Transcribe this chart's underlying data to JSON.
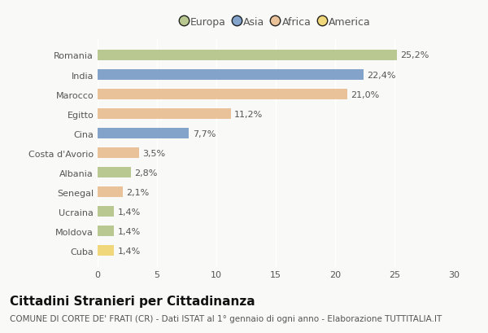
{
  "categories": [
    "Romania",
    "India",
    "Marocco",
    "Egitto",
    "Cina",
    "Costa d'Avorio",
    "Albania",
    "Senegal",
    "Ucraina",
    "Moldova",
    "Cuba"
  ],
  "values": [
    25.2,
    22.4,
    21.0,
    11.2,
    7.7,
    3.5,
    2.8,
    2.1,
    1.4,
    1.4,
    1.4
  ],
  "labels": [
    "25,2%",
    "22,4%",
    "21,0%",
    "11,2%",
    "7,7%",
    "3,5%",
    "2,8%",
    "2,1%",
    "1,4%",
    "1,4%",
    "1,4%"
  ],
  "continents": [
    "Europa",
    "Asia",
    "Africa",
    "Africa",
    "Asia",
    "Africa",
    "Europa",
    "Africa",
    "Europa",
    "Europa",
    "America"
  ],
  "colors": {
    "Europa": "#aec07e",
    "Asia": "#7094c4",
    "Africa": "#e8b98a",
    "America": "#f0d265"
  },
  "legend_order": [
    "Europa",
    "Asia",
    "Africa",
    "America"
  ],
  "xlim": [
    0,
    30
  ],
  "xticks": [
    0,
    5,
    10,
    15,
    20,
    25,
    30
  ],
  "title": "Cittadini Stranieri per Cittadinanza",
  "subtitle": "COMUNE DI CORTE DE' FRATI (CR) - Dati ISTAT al 1° gennaio di ogni anno - Elaborazione TUTTITALIA.IT",
  "bg_color": "#f9f9f7",
  "bar_alpha": 0.85,
  "title_fontsize": 11,
  "subtitle_fontsize": 7.5,
  "label_fontsize": 8,
  "tick_fontsize": 8,
  "legend_fontsize": 9
}
